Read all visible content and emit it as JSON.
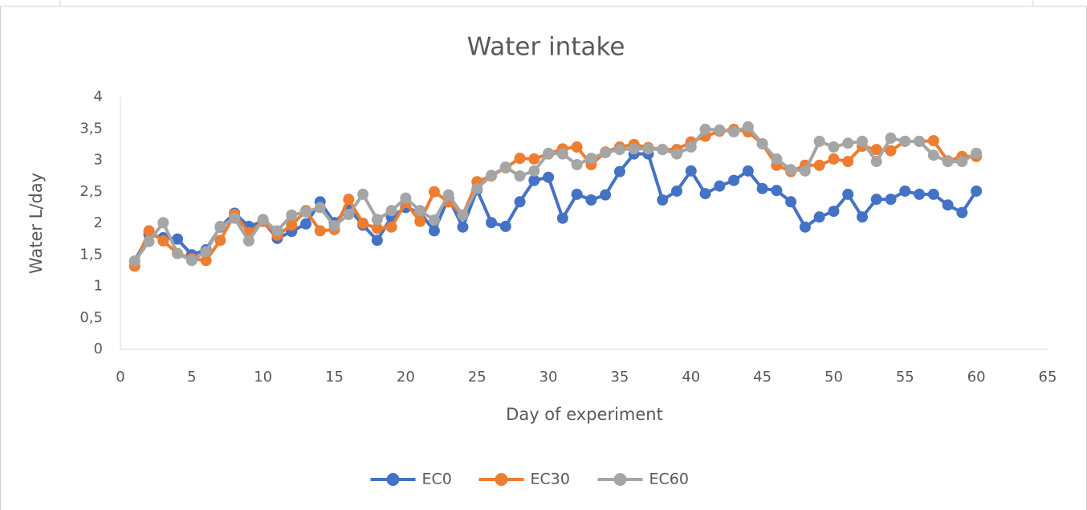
{
  "chart_data": {
    "type": "line",
    "title": "Water intake",
    "x_label": "Day of experiment",
    "y_label": "Water L/day",
    "x": [
      1,
      2,
      3,
      4,
      5,
      6,
      7,
      8,
      9,
      10,
      11,
      12,
      13,
      14,
      15,
      16,
      17,
      18,
      19,
      20,
      21,
      22,
      23,
      24,
      25,
      26,
      27,
      28,
      29,
      30,
      31,
      32,
      33,
      34,
      35,
      36,
      37,
      38,
      39,
      40,
      41,
      42,
      43,
      44,
      45,
      46,
      47,
      48,
      49,
      50,
      51,
      52,
      53,
      54,
      55,
      56,
      57,
      58,
      59,
      60
    ],
    "series": [
      {
        "name": "EC0",
        "color": "#4472c4",
        "values": [
          1.4,
          1.82,
          1.77,
          1.75,
          1.5,
          1.58,
          1.94,
          2.16,
          1.95,
          2.03,
          1.76,
          1.87,
          1.99,
          2.34,
          2.01,
          2.24,
          1.97,
          1.73,
          2.1,
          2.25,
          2.17,
          1.88,
          2.4,
          1.94,
          2.53,
          2.01,
          1.95,
          2.34,
          2.68,
          2.73,
          2.08,
          2.46,
          2.37,
          2.45,
          2.82,
          3.1,
          3.1,
          2.37,
          2.51,
          2.83,
          2.47,
          2.59,
          2.68,
          2.83,
          2.55,
          2.52,
          2.34,
          1.94,
          2.1,
          2.19,
          2.46,
          2.1,
          2.38,
          2.38,
          2.51,
          2.46,
          2.46,
          2.29,
          2.17,
          2.51
        ]
      },
      {
        "name": "EC30",
        "color": "#ed7d31",
        "values": [
          1.32,
          1.88,
          1.72,
          1.52,
          1.44,
          1.41,
          1.73,
          2.14,
          1.85,
          2.03,
          1.81,
          1.97,
          2.2,
          1.88,
          1.9,
          2.38,
          2.0,
          1.92,
          1.94,
          2.33,
          2.03,
          2.5,
          2.34,
          2.13,
          2.66,
          2.75,
          2.88,
          3.03,
          3.02,
          3.1,
          3.18,
          3.21,
          2.93,
          3.13,
          3.21,
          3.25,
          3.2,
          3.17,
          3.17,
          3.29,
          3.38,
          3.46,
          3.49,
          3.45,
          3.26,
          2.92,
          2.82,
          2.92,
          2.92,
          3.02,
          2.98,
          3.22,
          3.17,
          3.15,
          3.3,
          3.3,
          3.31,
          2.99,
          3.06,
          3.06
        ]
      },
      {
        "name": "EC60",
        "color": "#a5a5a5",
        "values": [
          1.4,
          1.71,
          2.01,
          1.52,
          1.41,
          1.55,
          1.95,
          2.08,
          1.72,
          2.06,
          1.88,
          2.13,
          2.18,
          2.25,
          1.96,
          2.14,
          2.46,
          2.06,
          2.2,
          2.4,
          2.2,
          2.05,
          2.45,
          2.13,
          2.55,
          2.76,
          2.89,
          2.75,
          2.83,
          3.11,
          3.1,
          2.93,
          3.03,
          3.12,
          3.17,
          3.18,
          3.18,
          3.17,
          3.1,
          3.21,
          3.49,
          3.48,
          3.45,
          3.53,
          3.26,
          3.02,
          2.85,
          2.83,
          3.3,
          3.21,
          3.27,
          3.3,
          2.98,
          3.35,
          3.3,
          3.3,
          3.08,
          2.98,
          2.98,
          3.11
        ]
      }
    ],
    "xlim": [
      0,
      65
    ],
    "xticks": [
      0,
      5,
      10,
      15,
      20,
      25,
      30,
      35,
      40,
      45,
      50,
      55,
      60,
      65
    ],
    "ylim": [
      0,
      4
    ],
    "yticks": [
      0,
      {
        "value": 0.5,
        "label": "0,5"
      },
      1,
      {
        "value": 1.5,
        "label": "1,5"
      },
      2,
      {
        "value": 2.5,
        "label": "2,5"
      },
      3,
      {
        "value": 3.5,
        "label": "3,5"
      },
      4
    ],
    "grid": false,
    "legend": "bottom"
  }
}
